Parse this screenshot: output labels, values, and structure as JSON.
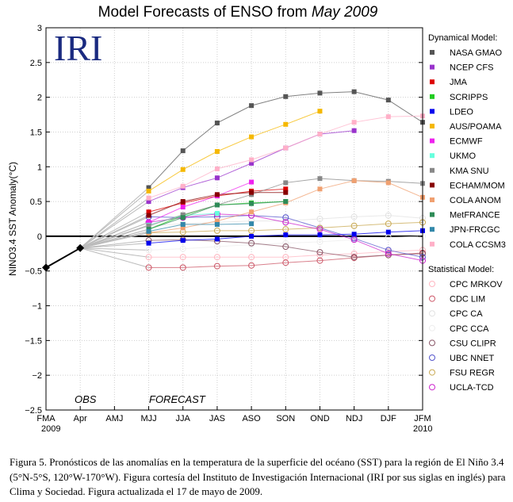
{
  "chart_data": {
    "type": "line",
    "title_main": "Model Forecasts of ENSO from ",
    "title_month": "May 2009",
    "logo_text": "IRI",
    "ylabel": "NINO3.4 SST Anomaly(°C)",
    "ylim": [
      -2.5,
      3
    ],
    "yticks": [
      "3",
      "2.5",
      "2",
      "1.5",
      "1",
      "0.5",
      "0",
      "−0.5",
      "−1",
      "−1.5",
      "−2",
      "−2.5"
    ],
    "ytick_values": [
      3,
      2.5,
      2,
      1.5,
      1,
      0.5,
      0,
      -0.5,
      -1,
      -1.5,
      -2,
      -2.5
    ],
    "categories": [
      "FMA",
      "Apr",
      "AMJ",
      "MJJ",
      "JJA",
      "JAS",
      "ASO",
      "SON",
      "OND",
      "NDJ",
      "DJF",
      "JFM"
    ],
    "start_year": "2009",
    "end_year": "2010",
    "obs_label": "OBS",
    "forecast_label": "FORECAST",
    "grid": true,
    "observed": {
      "x": [
        "FMA",
        "Apr"
      ],
      "values": [
        -0.45,
        -0.17
      ]
    },
    "dynamical_title": "Dynamical Model:",
    "statistical_title": "Statistical Model:",
    "dynamical": [
      {
        "name": "NASA GMAO",
        "color": "#555555",
        "values": [
          0.7,
          1.23,
          1.63,
          1.88,
          2.01,
          2.06,
          2.08,
          1.96,
          1.64
        ]
      },
      {
        "name": "NCEP CFS",
        "color": "#9933cc",
        "values": [
          0.5,
          0.7,
          0.84,
          1.05,
          1.27,
          1.47,
          1.52
        ]
      },
      {
        "name": "JMA",
        "color": "#dd0000",
        "values": [
          0.35,
          0.48,
          0.58,
          0.65,
          0.68
        ]
      },
      {
        "name": "SCRIPPS",
        "color": "#22cc22",
        "values": [
          0.1,
          0.3,
          0.45,
          0.48,
          0.5
        ]
      },
      {
        "name": "LDEO",
        "color": "#0000ee",
        "values": [
          -0.1,
          -0.06,
          -0.04,
          0.0,
          0.02,
          0.02,
          0.03,
          0.06,
          0.08
        ]
      },
      {
        "name": "AUS/POAMA",
        "color": "#f5b800",
        "values": [
          0.65,
          0.96,
          1.22,
          1.43,
          1.61,
          1.8
        ]
      },
      {
        "name": "ECMWF",
        "color": "#ee22ee",
        "values": [
          0.2,
          0.42,
          0.58,
          0.78
        ]
      },
      {
        "name": "UKMO",
        "color": "#66ffdd",
        "values": [
          0.16,
          0.3,
          0.33
        ]
      },
      {
        "name": "KMA SNU",
        "color": "#888888",
        "values": [
          0.15,
          0.31,
          0.45,
          0.6,
          0.77,
          0.83,
          0.8,
          0.79,
          0.76
        ]
      },
      {
        "name": "ECHAM/MOM",
        "color": "#880000",
        "values": [
          0.3,
          0.5,
          0.6,
          0.63,
          0.63
        ]
      },
      {
        "name": "COLA ANOM",
        "color": "#f0a070",
        "values": [
          0.05,
          0.12,
          0.22,
          0.35,
          0.48,
          0.68,
          0.8,
          0.77,
          0.56
        ]
      },
      {
        "name": "MetFRANCE",
        "color": "#2e8b57",
        "values": [
          0.1,
          0.27,
          0.45,
          0.47,
          0.5
        ]
      },
      {
        "name": "JPN-FRCGC",
        "color": "#3388aa",
        "values": [
          0.07,
          0.17,
          0.17,
          0.18
        ]
      },
      {
        "name": "COLA CCSM3",
        "color": "#ffb0c8",
        "values": [
          0.55,
          0.72,
          0.97,
          1.1,
          1.27,
          1.47,
          1.64,
          1.72,
          1.73
        ]
      }
    ],
    "statistical": [
      {
        "name": "CPC MRKOV",
        "color": "#ffb6c1",
        "values": [
          -0.3,
          -0.3,
          -0.3,
          -0.3,
          -0.3,
          -0.27,
          -0.25,
          -0.22,
          -0.2
        ]
      },
      {
        "name": "CDC LIM",
        "color": "#cc5566",
        "values": [
          -0.45,
          -0.45,
          -0.43,
          -0.42,
          -0.38,
          -0.35,
          -0.31,
          -0.27,
          -0.24
        ]
      },
      {
        "name": "CPC CA",
        "color": "#e2e2e2",
        "values": [
          0.15,
          0.18,
          0.2,
          0.22,
          0.22,
          0.25,
          0.28,
          0.3,
          0.26
        ]
      },
      {
        "name": "CPC CCA",
        "color": "#eeeeee",
        "values": [
          -0.2,
          -0.18,
          -0.15,
          -0.12,
          -0.1,
          -0.08,
          -0.05,
          -0.02,
          0.0
        ]
      },
      {
        "name": "CSU CLIPR",
        "color": "#885566",
        "values": [
          -0.06,
          -0.05,
          -0.07,
          -0.1,
          -0.15,
          -0.23,
          -0.3,
          -0.27,
          -0.25
        ]
      },
      {
        "name": "UBC NNET",
        "color": "#5555cc",
        "values": [
          0.28,
          0.27,
          0.28,
          0.3,
          0.27,
          0.12,
          -0.03,
          -0.2,
          -0.3
        ]
      },
      {
        "name": "FSU REGR",
        "color": "#c8a850",
        "values": [
          0.05,
          0.06,
          0.08,
          0.08,
          0.1,
          0.12,
          0.15,
          0.18,
          0.2
        ]
      },
      {
        "name": "UCLA-TCD",
        "color": "#cc22cc",
        "values": [
          0.2,
          0.27,
          0.32,
          0.3,
          0.2,
          0.1,
          -0.05,
          -0.25,
          -0.35
        ]
      }
    ]
  },
  "caption": "Figura 5. Pronósticos de las anomalías en la temperatura de la superficie del océano (SST) para la región de El Niño 3.4 (5°N-5°S, 120°W-170°W). Figura cortesía del Instituto de Investigación Internacional (IRI por sus siglas en inglés) para Clima y Sociedad. Figura actualizada el 17 de mayo de 2009."
}
